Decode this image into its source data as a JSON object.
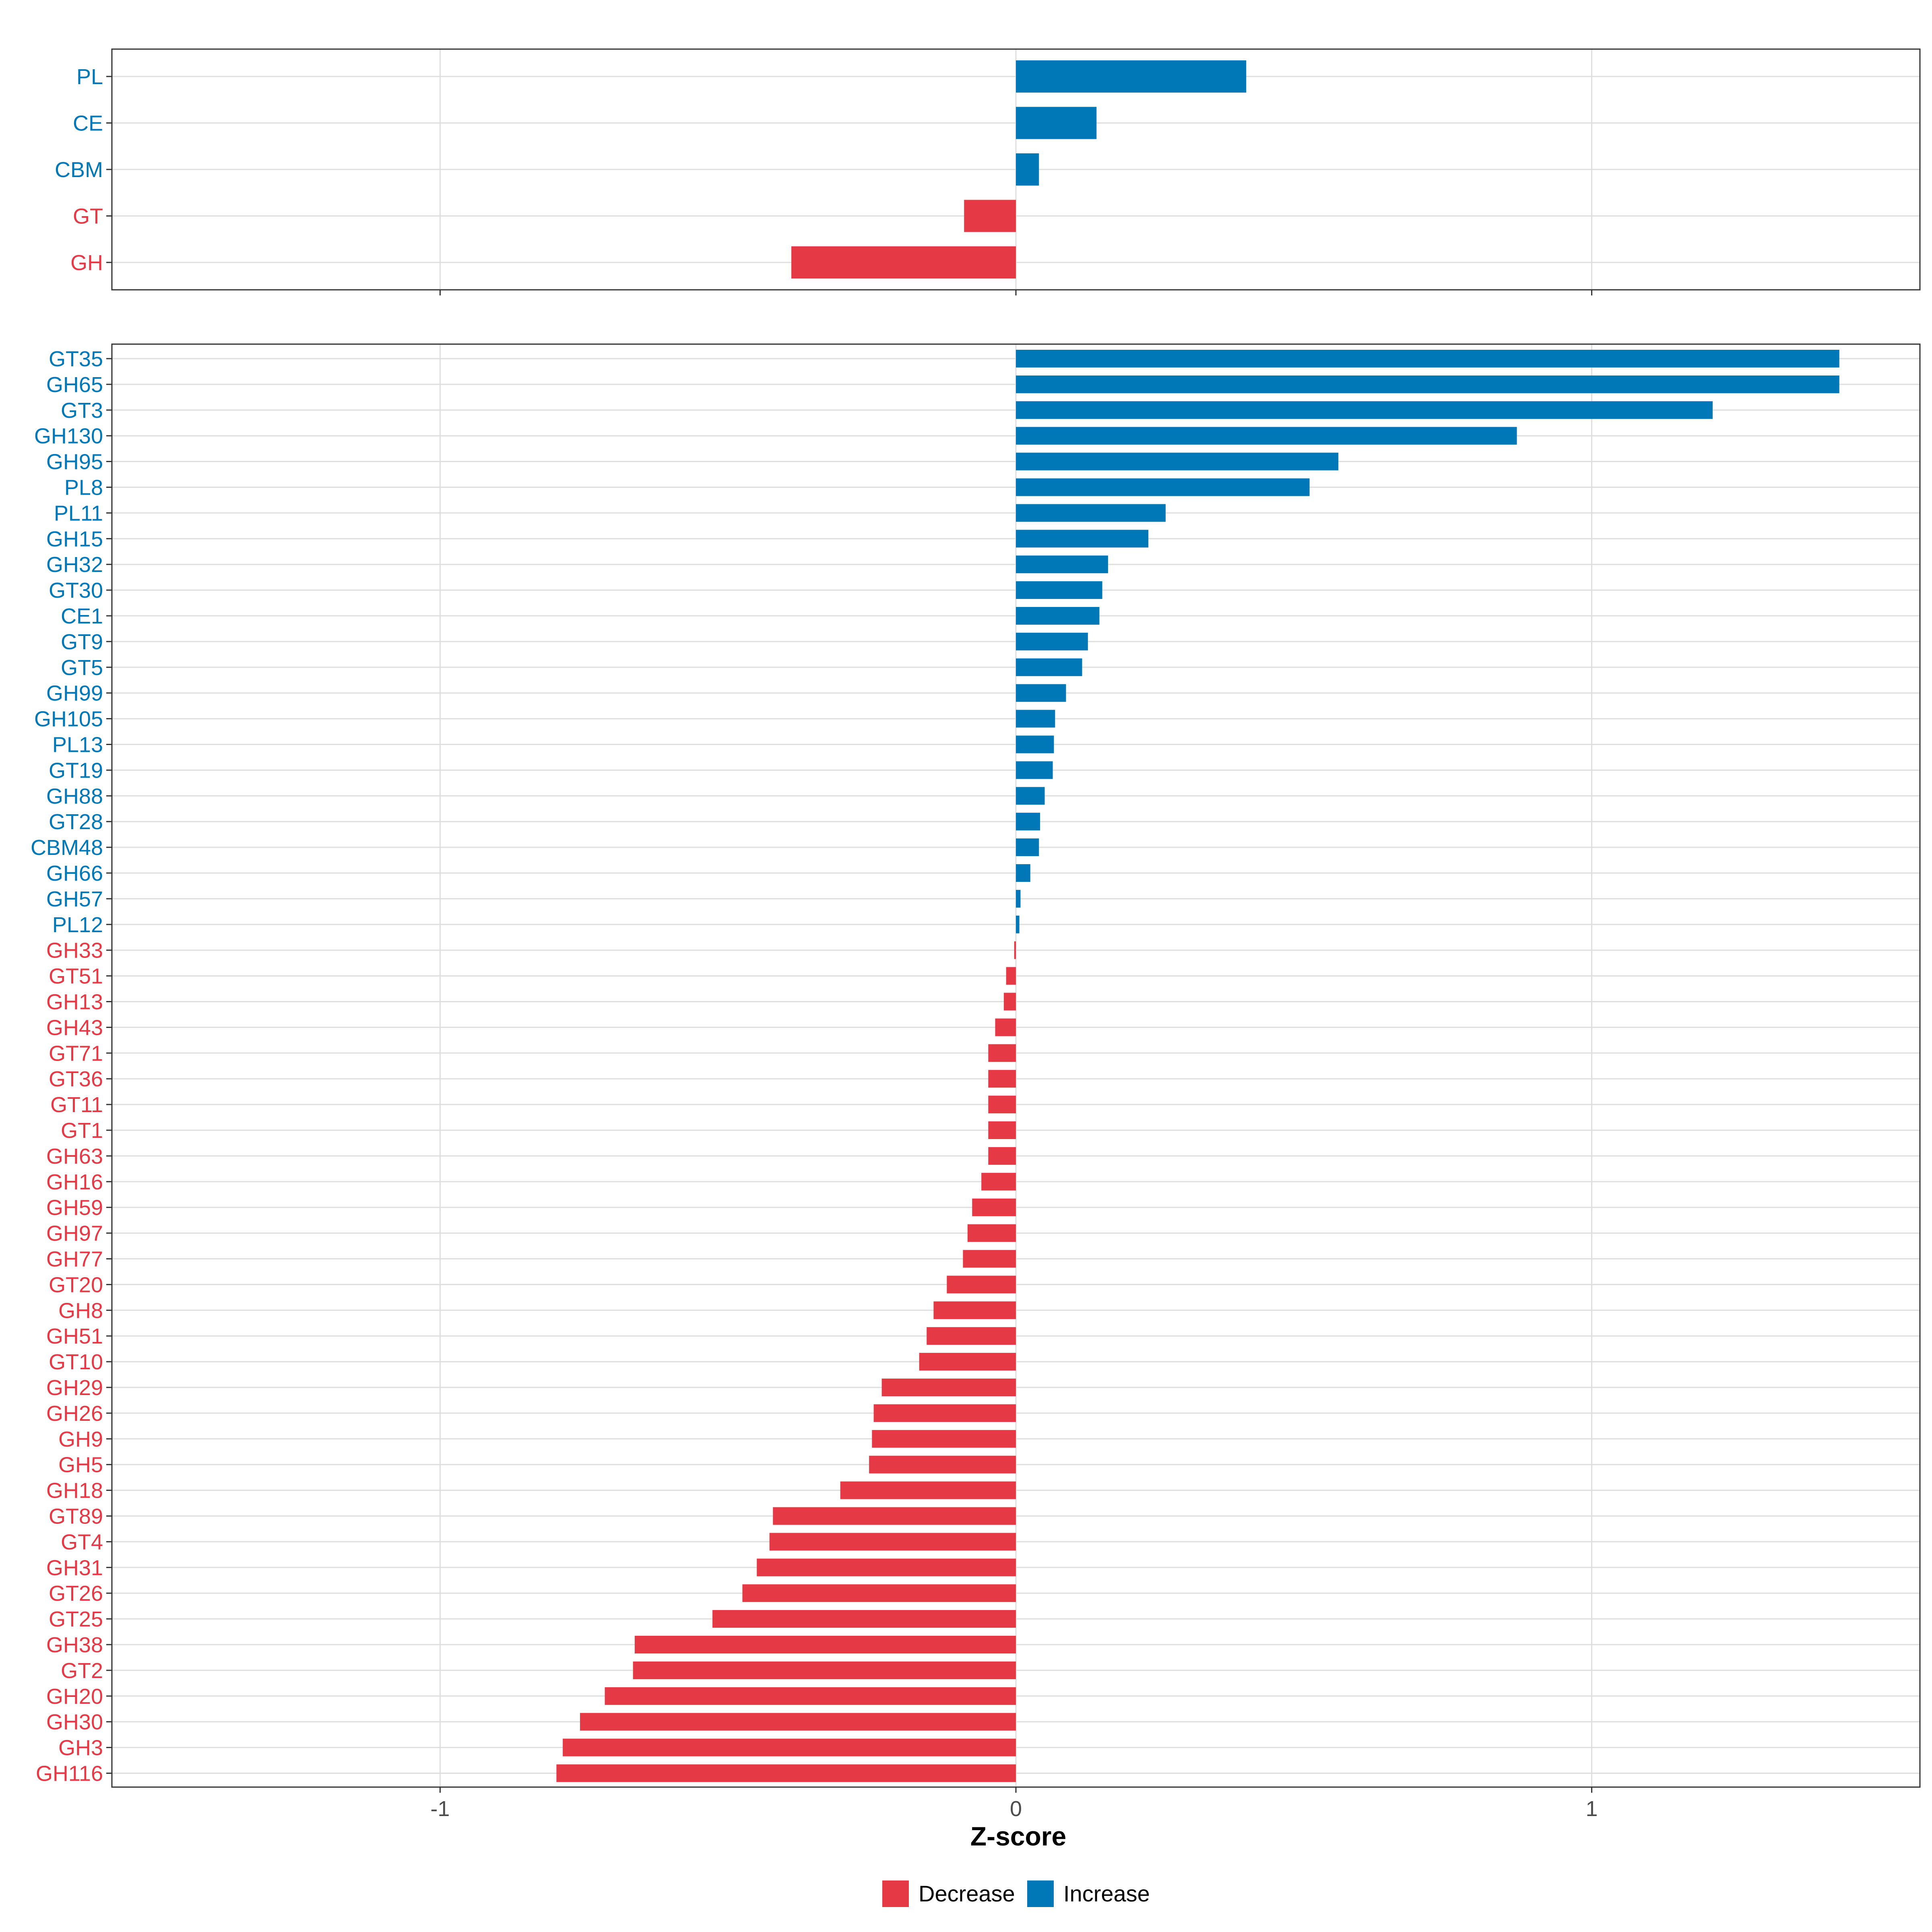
{
  "chart_data": {
    "type": "bar",
    "orientation": "horizontal",
    "xlabel": "Z-score",
    "xlim": [
      -1.57,
      1.57
    ],
    "xticks": [
      -1,
      0,
      1
    ],
    "xtick_labels": [
      "-1",
      "0",
      "1"
    ],
    "colors": {
      "Decrease": "#e63946",
      "Increase": "#0077b6",
      "grid": "#dedede",
      "frame": "#333333"
    },
    "legend": {
      "position": "bottom",
      "entries": [
        {
          "label": "Decrease",
          "color": "#e63946"
        },
        {
          "label": "Increase",
          "color": "#0077b6"
        }
      ]
    },
    "panels": [
      {
        "name": "classes",
        "categories": [
          "PL",
          "CE",
          "CBM",
          "GT",
          "GH"
        ],
        "values": [
          0.4,
          0.14,
          0.04,
          -0.09,
          -0.39
        ]
      },
      {
        "name": "families",
        "categories": [
          "GT35",
          "GH65",
          "GT3",
          "GH130",
          "GH95",
          "PL8",
          "PL11",
          "GH15",
          "GH32",
          "GT30",
          "CE1",
          "GT9",
          "GT5",
          "GH99",
          "GH105",
          "PL13",
          "GT19",
          "GH88",
          "GT28",
          "CBM48",
          "GH66",
          "GH57",
          "PL12",
          "GH33",
          "GT51",
          "GH13",
          "GH43",
          "GT71",
          "GT36",
          "GT11",
          "GT1",
          "GH63",
          "GH16",
          "GH59",
          "GH97",
          "GH77",
          "GT20",
          "GH8",
          "GH51",
          "GT10",
          "GH29",
          "GH26",
          "GH9",
          "GH5",
          "GH18",
          "GT89",
          "GT4",
          "GH31",
          "GT26",
          "GT25",
          "GH38",
          "GT2",
          "GH20",
          "GH30",
          "GH3",
          "GH116"
        ],
        "values": [
          1.43,
          1.43,
          1.21,
          0.87,
          0.56,
          0.51,
          0.26,
          0.23,
          0.16,
          0.15,
          0.145,
          0.125,
          0.115,
          0.087,
          0.068,
          0.066,
          0.064,
          0.05,
          0.042,
          0.04,
          0.025,
          0.008,
          0.006,
          -0.003,
          -0.017,
          -0.021,
          -0.036,
          -0.048,
          -0.048,
          -0.048,
          -0.048,
          -0.048,
          -0.06,
          -0.076,
          -0.084,
          -0.092,
          -0.12,
          -0.143,
          -0.155,
          -0.168,
          -0.233,
          -0.247,
          -0.25,
          -0.255,
          -0.305,
          -0.422,
          -0.428,
          -0.45,
          -0.475,
          -0.527,
          -0.662,
          -0.665,
          -0.714,
          -0.757,
          -0.787,
          -0.798
        ]
      }
    ]
  }
}
